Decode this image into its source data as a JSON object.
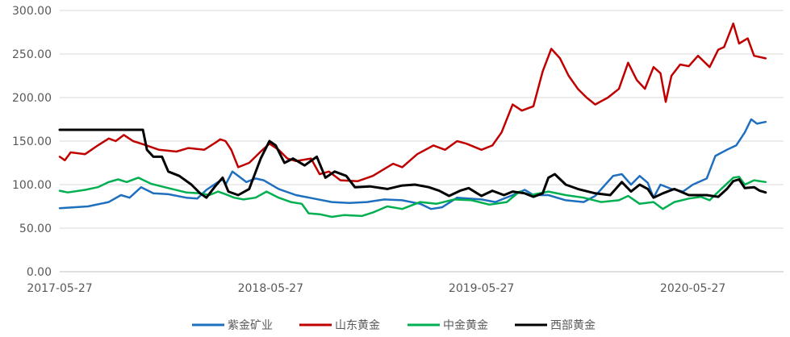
{
  "chart_data": {
    "type": "line",
    "title": "",
    "xlabel": "",
    "ylabel": "",
    "ylim": [
      0,
      300
    ],
    "yticks": [
      "0.00",
      "50.00",
      "100.00",
      "150.00",
      "200.00",
      "250.00",
      "300.00"
    ],
    "xlim": [
      "2017-05-27",
      "2020-10-31"
    ],
    "xticks": [
      "2017-05-27",
      "2018-05-27",
      "2019-05-27",
      "2020-05-27"
    ],
    "grid": true,
    "legend_position": "bottom",
    "colors": {
      "紫金矿业": "#1f6fbf",
      "山东黄金": "#c00000",
      "中金黄金": "#00b050",
      "西部黄金": "#000000",
      "grid": "#d9d9d9",
      "axis": "#bfbfbf"
    },
    "series": [
      {
        "name": "紫金矿业",
        "points": [
          [
            "2017-05-27",
            73
          ],
          [
            "2017-07-15",
            75
          ],
          [
            "2017-08-20",
            80
          ],
          [
            "2017-09-10",
            88
          ],
          [
            "2017-09-25",
            85
          ],
          [
            "2017-10-15",
            97
          ],
          [
            "2017-11-05",
            90
          ],
          [
            "2017-12-01",
            89
          ],
          [
            "2018-01-01",
            85
          ],
          [
            "2018-01-20",
            84
          ],
          [
            "2018-02-05",
            94
          ],
          [
            "2018-02-25",
            103
          ],
          [
            "2018-03-05",
            106
          ],
          [
            "2018-03-10",
            100
          ],
          [
            "2018-03-22",
            115
          ],
          [
            "2018-04-05",
            108
          ],
          [
            "2018-04-15",
            103
          ],
          [
            "2018-05-01",
            107
          ],
          [
            "2018-05-15",
            105
          ],
          [
            "2018-06-10",
            95
          ],
          [
            "2018-07-10",
            88
          ],
          [
            "2018-08-10",
            84
          ],
          [
            "2018-09-10",
            80
          ],
          [
            "2018-10-10",
            79
          ],
          [
            "2018-11-10",
            80
          ],
          [
            "2018-12-10",
            83
          ],
          [
            "2019-01-10",
            82
          ],
          [
            "2019-02-10",
            78
          ],
          [
            "2019-03-01",
            72
          ],
          [
            "2019-03-20",
            74
          ],
          [
            "2019-04-15",
            85
          ],
          [
            "2019-05-27",
            83
          ],
          [
            "2019-06-20",
            80
          ],
          [
            "2019-07-20",
            88
          ],
          [
            "2019-08-10",
            94
          ],
          [
            "2019-08-25",
            88
          ],
          [
            "2019-09-20",
            88
          ],
          [
            "2019-10-20",
            82
          ],
          [
            "2019-11-20",
            80
          ],
          [
            "2019-12-10",
            87
          ],
          [
            "2020-01-10",
            110
          ],
          [
            "2020-01-25",
            112
          ],
          [
            "2020-02-10",
            100
          ],
          [
            "2020-02-25",
            110
          ],
          [
            "2020-03-10",
            102
          ],
          [
            "2020-03-20",
            85
          ],
          [
            "2020-04-01",
            100
          ],
          [
            "2020-04-20",
            95
          ],
          [
            "2020-05-10",
            92
          ],
          [
            "2020-05-27",
            100
          ],
          [
            "2020-06-20",
            107
          ],
          [
            "2020-07-05",
            133
          ],
          [
            "2020-07-25",
            140
          ],
          [
            "2020-08-10",
            145
          ],
          [
            "2020-08-25",
            160
          ],
          [
            "2020-09-05",
            175
          ],
          [
            "2020-09-15",
            170
          ],
          [
            "2020-09-30",
            172
          ]
        ]
      },
      {
        "name": "山东黄金",
        "points": [
          [
            "2017-05-27",
            132
          ],
          [
            "2017-06-05",
            128
          ],
          [
            "2017-06-15",
            137
          ],
          [
            "2017-07-10",
            135
          ],
          [
            "2017-08-01",
            145
          ],
          [
            "2017-08-20",
            153
          ],
          [
            "2017-09-01",
            150
          ],
          [
            "2017-09-15",
            157
          ],
          [
            "2017-10-01",
            150
          ],
          [
            "2017-10-20",
            146
          ],
          [
            "2017-11-15",
            140
          ],
          [
            "2017-12-15",
            138
          ],
          [
            "2018-01-05",
            142
          ],
          [
            "2018-02-01",
            140
          ],
          [
            "2018-02-20",
            148
          ],
          [
            "2018-03-01",
            152
          ],
          [
            "2018-03-10",
            150
          ],
          [
            "2018-03-20",
            140
          ],
          [
            "2018-04-01",
            120
          ],
          [
            "2018-04-20",
            125
          ],
          [
            "2018-05-10",
            138
          ],
          [
            "2018-05-25",
            147
          ],
          [
            "2018-06-10",
            140
          ],
          [
            "2018-06-25",
            130
          ],
          [
            "2018-07-10",
            127
          ],
          [
            "2018-08-05",
            130
          ],
          [
            "2018-08-20",
            112
          ],
          [
            "2018-09-05",
            115
          ],
          [
            "2018-09-25",
            105
          ],
          [
            "2018-10-25",
            104
          ],
          [
            "2018-11-20",
            110
          ],
          [
            "2018-12-10",
            118
          ],
          [
            "2018-12-25",
            124
          ],
          [
            "2019-01-10",
            120
          ],
          [
            "2019-02-05",
            135
          ],
          [
            "2019-03-05",
            145
          ],
          [
            "2019-03-25",
            140
          ],
          [
            "2019-04-15",
            150
          ],
          [
            "2019-05-01",
            147
          ],
          [
            "2019-05-27",
            140
          ],
          [
            "2019-06-15",
            145
          ],
          [
            "2019-07-01",
            160
          ],
          [
            "2019-07-20",
            192
          ],
          [
            "2019-08-05",
            185
          ],
          [
            "2019-08-25",
            190
          ],
          [
            "2019-09-10",
            230
          ],
          [
            "2019-09-25",
            256
          ],
          [
            "2019-10-10",
            245
          ],
          [
            "2019-10-25",
            225
          ],
          [
            "2019-11-10",
            210
          ],
          [
            "2019-11-25",
            200
          ],
          [
            "2019-12-10",
            192
          ],
          [
            "2020-01-01",
            200
          ],
          [
            "2020-01-20",
            210
          ],
          [
            "2020-02-05",
            240
          ],
          [
            "2020-02-20",
            220
          ],
          [
            "2020-03-05",
            210
          ],
          [
            "2020-03-20",
            235
          ],
          [
            "2020-04-01",
            228
          ],
          [
            "2020-04-10",
            195
          ],
          [
            "2020-04-20",
            225
          ],
          [
            "2020-05-05",
            238
          ],
          [
            "2020-05-20",
            236
          ],
          [
            "2020-06-05",
            248
          ],
          [
            "2020-06-25",
            235
          ],
          [
            "2020-07-10",
            255
          ],
          [
            "2020-07-20",
            258
          ],
          [
            "2020-08-05",
            285
          ],
          [
            "2020-08-15",
            262
          ],
          [
            "2020-08-30",
            268
          ],
          [
            "2020-09-10",
            248
          ],
          [
            "2020-09-30",
            245
          ]
        ]
      },
      {
        "name": "中金黄金",
        "points": [
          [
            "2017-05-27",
            93
          ],
          [
            "2017-06-10",
            91
          ],
          [
            "2017-07-10",
            94
          ],
          [
            "2017-08-01",
            97
          ],
          [
            "2017-08-20",
            103
          ],
          [
            "2017-09-05",
            106
          ],
          [
            "2017-09-20",
            103
          ],
          [
            "2017-10-10",
            108
          ],
          [
            "2017-11-01",
            101
          ],
          [
            "2017-12-01",
            96
          ],
          [
            "2018-01-01",
            91
          ],
          [
            "2018-01-25",
            90
          ],
          [
            "2018-02-10",
            88
          ],
          [
            "2018-02-25",
            92
          ],
          [
            "2018-03-10",
            89
          ],
          [
            "2018-03-25",
            85
          ],
          [
            "2018-04-10",
            83
          ],
          [
            "2018-05-01",
            85
          ],
          [
            "2018-05-20",
            92
          ],
          [
            "2018-06-10",
            85
          ],
          [
            "2018-07-01",
            80
          ],
          [
            "2018-07-20",
            78
          ],
          [
            "2018-08-01",
            67
          ],
          [
            "2018-08-20",
            66
          ],
          [
            "2018-09-10",
            63
          ],
          [
            "2018-10-01",
            65
          ],
          [
            "2018-11-01",
            64
          ],
          [
            "2018-11-20",
            68
          ],
          [
            "2018-12-15",
            75
          ],
          [
            "2019-01-10",
            72
          ],
          [
            "2019-02-10",
            80
          ],
          [
            "2019-03-10",
            78
          ],
          [
            "2019-04-10",
            83
          ],
          [
            "2019-05-10",
            82
          ],
          [
            "2019-06-10",
            77
          ],
          [
            "2019-07-10",
            80
          ],
          [
            "2019-08-01",
            92
          ],
          [
            "2019-08-20",
            88
          ],
          [
            "2019-09-20",
            92
          ],
          [
            "2019-10-20",
            88
          ],
          [
            "2019-11-20",
            85
          ],
          [
            "2019-12-20",
            80
          ],
          [
            "2020-01-20",
            82
          ],
          [
            "2020-02-05",
            87
          ],
          [
            "2020-02-25",
            78
          ],
          [
            "2020-03-20",
            80
          ],
          [
            "2020-04-05",
            72
          ],
          [
            "2020-04-25",
            80
          ],
          [
            "2020-05-20",
            84
          ],
          [
            "2020-06-10",
            86
          ],
          [
            "2020-06-25",
            82
          ],
          [
            "2020-07-15",
            95
          ],
          [
            "2020-08-05",
            108
          ],
          [
            "2020-08-15",
            109
          ],
          [
            "2020-08-25",
            100
          ],
          [
            "2020-09-10",
            105
          ],
          [
            "2020-09-30",
            103
          ]
        ]
      },
      {
        "name": "西部黄金",
        "points": [
          [
            "2017-05-27",
            163
          ],
          [
            "2017-09-15",
            163
          ],
          [
            "2017-10-18",
            163
          ],
          [
            "2017-10-25",
            140
          ],
          [
            "2017-11-05",
            132
          ],
          [
            "2017-11-20",
            132
          ],
          [
            "2017-12-01",
            115
          ],
          [
            "2017-12-20",
            110
          ],
          [
            "2018-01-10",
            100
          ],
          [
            "2018-01-25",
            90
          ],
          [
            "2018-02-05",
            85
          ],
          [
            "2018-02-20",
            98
          ],
          [
            "2018-03-05",
            108
          ],
          [
            "2018-03-15",
            92
          ],
          [
            "2018-04-01",
            88
          ],
          [
            "2018-04-20",
            95
          ],
          [
            "2018-05-10",
            130
          ],
          [
            "2018-05-25",
            150
          ],
          [
            "2018-06-05",
            145
          ],
          [
            "2018-06-20",
            125
          ],
          [
            "2018-07-05",
            130
          ],
          [
            "2018-07-25",
            122
          ],
          [
            "2018-08-15",
            132
          ],
          [
            "2018-08-30",
            108
          ],
          [
            "2018-09-15",
            115
          ],
          [
            "2018-10-05",
            110
          ],
          [
            "2018-10-20",
            97
          ],
          [
            "2018-11-15",
            98
          ],
          [
            "2018-12-15",
            95
          ],
          [
            "2019-01-10",
            99
          ],
          [
            "2019-02-01",
            100
          ],
          [
            "2019-02-25",
            97
          ],
          [
            "2019-03-15",
            93
          ],
          [
            "2019-04-01",
            87
          ],
          [
            "2019-04-20",
            93
          ],
          [
            "2019-05-05",
            96
          ],
          [
            "2019-05-27",
            87
          ],
          [
            "2019-06-15",
            93
          ],
          [
            "2019-07-05",
            88
          ],
          [
            "2019-07-20",
            92
          ],
          [
            "2019-08-10",
            90
          ],
          [
            "2019-08-25",
            86
          ],
          [
            "2019-09-10",
            90
          ],
          [
            "2019-09-20",
            108
          ],
          [
            "2019-10-01",
            112
          ],
          [
            "2019-10-20",
            100
          ],
          [
            "2019-11-10",
            95
          ],
          [
            "2019-12-10",
            90
          ],
          [
            "2020-01-05",
            88
          ],
          [
            "2020-01-25",
            103
          ],
          [
            "2020-02-10",
            92
          ],
          [
            "2020-02-25",
            100
          ],
          [
            "2020-03-10",
            95
          ],
          [
            "2020-03-20",
            85
          ],
          [
            "2020-04-05",
            90
          ],
          [
            "2020-04-25",
            95
          ],
          [
            "2020-05-20",
            88
          ],
          [
            "2020-06-20",
            88
          ],
          [
            "2020-07-10",
            86
          ],
          [
            "2020-07-25",
            95
          ],
          [
            "2020-08-05",
            104
          ],
          [
            "2020-08-15",
            106
          ],
          [
            "2020-08-25",
            96
          ],
          [
            "2020-09-10",
            97
          ],
          [
            "2020-09-20",
            93
          ],
          [
            "2020-09-30",
            91
          ]
        ]
      }
    ]
  }
}
